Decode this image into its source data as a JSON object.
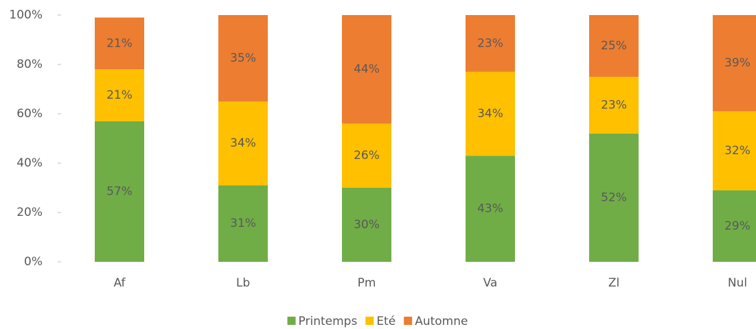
{
  "chart_data": {
    "type": "stacked_bar",
    "categories": [
      "Af",
      "Lb",
      "Pm",
      "Va",
      "Zl",
      "Nul"
    ],
    "series": [
      {
        "name": "Printemps",
        "color": "#70ad47",
        "values": [
          57,
          31,
          30,
          43,
          52,
          29
        ],
        "value_labels": [
          "57%",
          "31%",
          "30%",
          "43%",
          "52%",
          "29%"
        ]
      },
      {
        "name": "Eté",
        "color": "#ffc000",
        "values": [
          21,
          34,
          26,
          34,
          23,
          32
        ],
        "value_labels": [
          "21%",
          "34%",
          "26%",
          "34%",
          "23%",
          "32%"
        ]
      },
      {
        "name": "Automne",
        "color": "#ed7d31",
        "values": [
          21,
          35,
          44,
          23,
          25,
          39
        ],
        "value_labels": [
          "21%",
          "35%",
          "44%",
          "23%",
          "25%",
          "39%"
        ]
      }
    ],
    "ylim": [
      0,
      100
    ],
    "yticks": [
      {
        "value": 0,
        "label": "0%"
      },
      {
        "value": 20,
        "label": "20%"
      },
      {
        "value": 40,
        "label": "40%"
      },
      {
        "value": 60,
        "label": "60%"
      },
      {
        "value": 80,
        "label": "80%"
      },
      {
        "value": 100,
        "label": "100%"
      }
    ],
    "legend": "bottom"
  }
}
